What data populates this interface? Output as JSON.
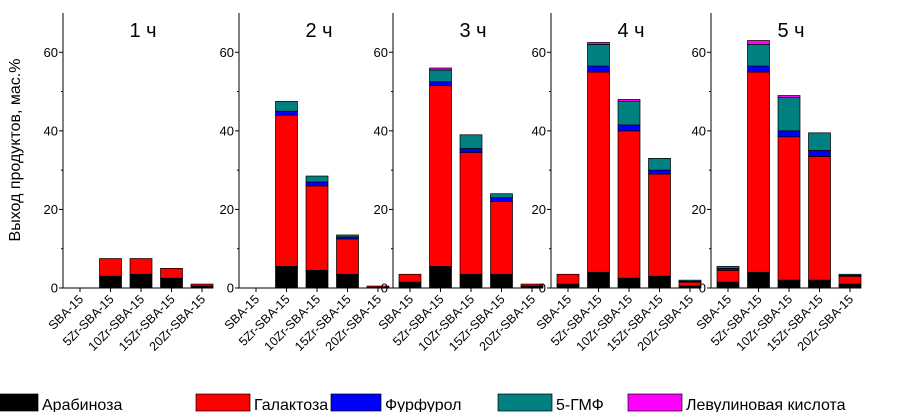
{
  "chart_data": {
    "type": "bar",
    "stacked": true,
    "ylabel": "Выход продуктов, мас.%",
    "xlabel": "",
    "ylim": [
      0,
      70
    ],
    "yticks": [
      0,
      20,
      40,
      60
    ],
    "grid": false,
    "legend_position": "bottom",
    "categories": [
      "SBA-15",
      "5Zr-SBA-15",
      "10Zr-SBA-15",
      "15Zr-SBA-15",
      "20Zr-SBA-15"
    ],
    "series_colors": {
      "Арабиноза": "#000000",
      "Галактоза": "#ff0000",
      "Фурфурол": "#0000ff",
      "5-ГМФ": "#008080",
      "Левулиновая кислота": "#ff00ff"
    },
    "panels": [
      {
        "title": "1 ч",
        "series": [
          {
            "name": "Арабиноза",
            "values": [
              0,
              3.0,
              3.5,
              2.5,
              0.5
            ]
          },
          {
            "name": "Галактоза",
            "values": [
              0,
              4.5,
              4.0,
              2.5,
              0.5
            ]
          },
          {
            "name": "Фурфурол",
            "values": [
              0,
              0,
              0,
              0,
              0
            ]
          },
          {
            "name": "5-ГМФ",
            "values": [
              0,
              0,
              0,
              0,
              0
            ]
          },
          {
            "name": "Левулиновая кислота",
            "values": [
              0,
              0,
              0,
              0,
              0
            ]
          }
        ]
      },
      {
        "title": "2 ч",
        "series": [
          {
            "name": "Арабиноза",
            "values": [
              0,
              5.5,
              4.5,
              3.5,
              0.2
            ]
          },
          {
            "name": "Галактоза",
            "values": [
              0,
              38.5,
              21.5,
              9.0,
              0.3
            ]
          },
          {
            "name": "Фурфурол",
            "values": [
              0,
              1.0,
              1.0,
              0.5,
              0
            ]
          },
          {
            "name": "5-ГМФ",
            "values": [
              0,
              2.5,
              1.5,
              0.5,
              0
            ]
          },
          {
            "name": "Левулиновая кислота",
            "values": [
              0,
              0,
              0,
              0,
              0
            ]
          }
        ]
      },
      {
        "title": "3 ч",
        "series": [
          {
            "name": "Арабиноза",
            "values": [
              1.5,
              5.5,
              3.5,
              3.5,
              0.5
            ]
          },
          {
            "name": "Галактоза",
            "values": [
              2.0,
              46.0,
              31.0,
              18.5,
              0.5
            ]
          },
          {
            "name": "Фурфурол",
            "values": [
              0,
              1.0,
              1.0,
              1.0,
              0
            ]
          },
          {
            "name": "5-ГМФ",
            "values": [
              0,
              3.0,
              3.5,
              1.0,
              0
            ]
          },
          {
            "name": "Левулиновая кислота",
            "values": [
              0,
              0.5,
              0,
              0,
              0
            ]
          }
        ]
      },
      {
        "title": "4 ч",
        "series": [
          {
            "name": "Арабиноза",
            "values": [
              1.0,
              4.0,
              2.5,
              3.0,
              0.5
            ]
          },
          {
            "name": "Галактоза",
            "values": [
              2.5,
              51.0,
              37.5,
              26.0,
              1.0
            ]
          },
          {
            "name": "Фурфурол",
            "values": [
              0,
              1.5,
              1.5,
              1.0,
              0.2
            ]
          },
          {
            "name": "5-ГМФ",
            "values": [
              0,
              5.5,
              6.0,
              3.0,
              0.3
            ]
          },
          {
            "name": "Левулиновая кислота",
            "values": [
              0,
              0.5,
              0.5,
              0,
              0
            ]
          }
        ]
      },
      {
        "title": "5 ч",
        "series": [
          {
            "name": "Арабиноза",
            "values": [
              1.5,
              4.0,
              2.0,
              2.0,
              1.0
            ]
          },
          {
            "name": "Галактоза",
            "values": [
              3.0,
              51.0,
              36.5,
              31.5,
              2.0
            ]
          },
          {
            "name": "Фурфурол",
            "values": [
              0.5,
              1.5,
              1.5,
              1.5,
              0.2
            ]
          },
          {
            "name": "5-ГМФ",
            "values": [
              0.5,
              5.5,
              8.5,
              4.5,
              0.3
            ]
          },
          {
            "name": "Левулиновая кислота",
            "values": [
              0,
              1.0,
              0.5,
              0,
              0
            ]
          }
        ]
      }
    ]
  }
}
